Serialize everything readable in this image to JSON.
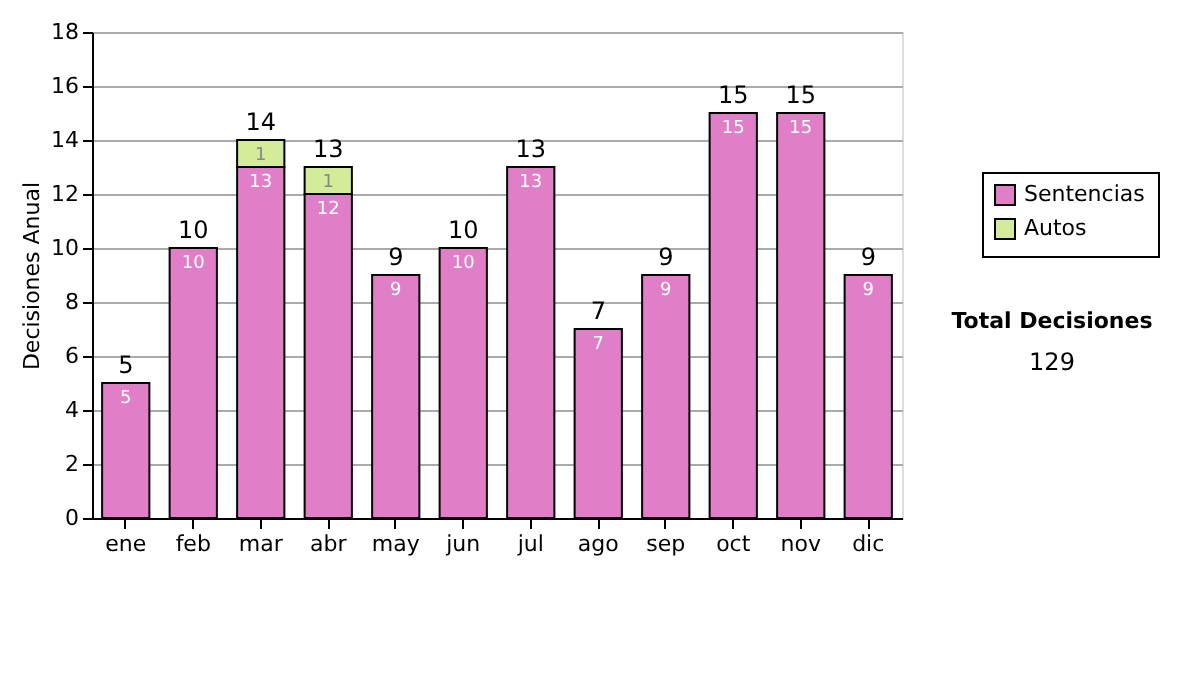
{
  "chart_data": {
    "type": "bar",
    "stacked": true,
    "ylabel": "Decisiones Anual",
    "categories": [
      "ene",
      "feb",
      "mar",
      "abr",
      "may",
      "jun",
      "jul",
      "ago",
      "sep",
      "oct",
      "nov",
      "dic"
    ],
    "series": [
      {
        "name": "Sentencias",
        "color": "#e07fc8",
        "values": [
          5,
          10,
          13,
          12,
          9,
          10,
          13,
          7,
          9,
          15,
          15,
          9
        ]
      },
      {
        "name": "Autos",
        "color": "#d4ec9a",
        "values": [
          null,
          null,
          1,
          1,
          null,
          null,
          null,
          null,
          null,
          null,
          null,
          null
        ]
      }
    ],
    "data_labels": true,
    "totals": [
      "5",
      "10",
      "14",
      "13",
      "9",
      "10",
      "13",
      "7",
      "9",
      "15",
      "15",
      "9"
    ],
    "ylim": [
      0,
      18
    ],
    "yticks": [
      0,
      2,
      4,
      6,
      8,
      10,
      12,
      14,
      16,
      18
    ],
    "grid": "y",
    "legend": "right",
    "annotations": [
      "Total Decisiones",
      "129"
    ]
  }
}
